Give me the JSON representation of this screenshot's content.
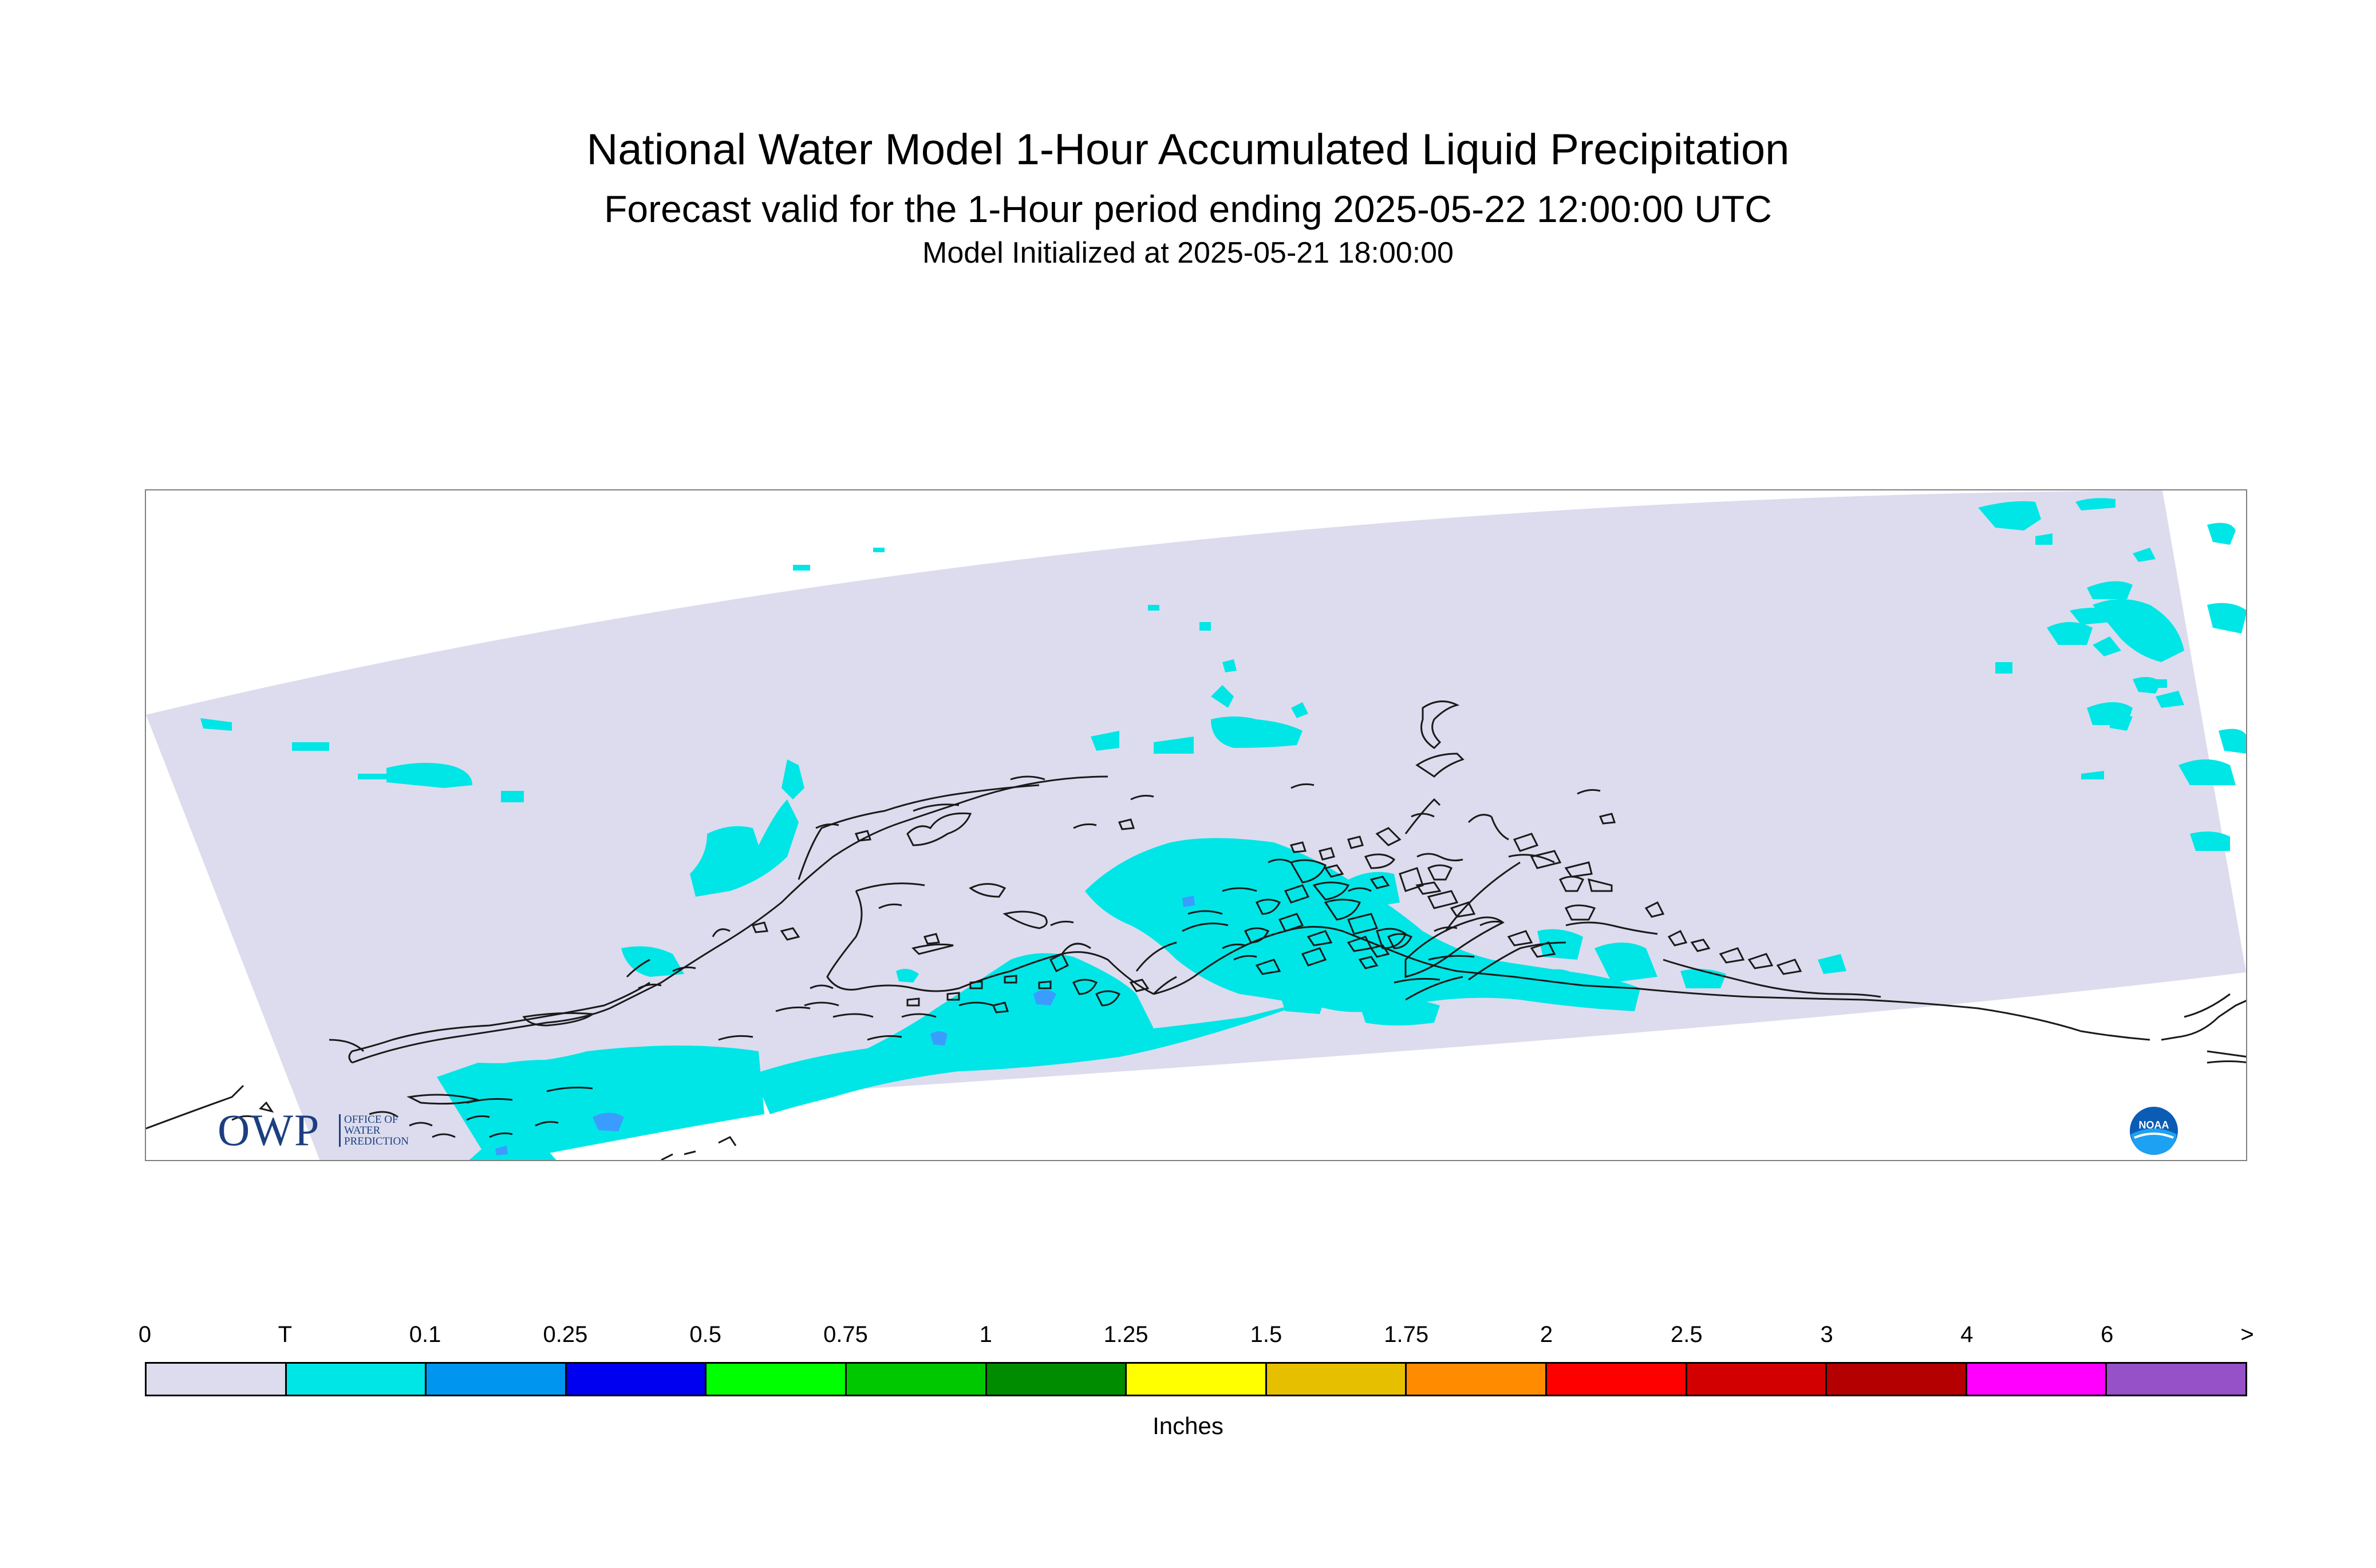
{
  "header": {
    "title": "National Water Model 1-Hour Accumulated Liquid Precipitation",
    "subtitle": "Forecast valid for the 1-Hour period ending 2025-05-22 12:00:00 UTC",
    "initialized": "Model Initialized at 2025-05-21 18:00:00"
  },
  "logos": {
    "owp_letters": "OWP",
    "owp_line1": "OFFICE OF",
    "owp_line2": "WATER",
    "owp_line3": "PREDICTION",
    "noaa_text": "NOAA"
  },
  "colors": {
    "domain": "#dcdcee",
    "background": "#ffffff",
    "coastline": "#1a1a1a",
    "frame": "#808080"
  },
  "legend": {
    "unit": "Inches",
    "labels": [
      "0",
      "T",
      "0.1",
      "0.25",
      "0.5",
      "0.75",
      "1",
      "1.25",
      "1.5",
      "1.75",
      "2",
      "2.5",
      "3",
      "4",
      "6",
      ">"
    ],
    "colors": [
      "#dcdcee",
      "#00e6e6",
      "#0096f0",
      "#0000f0",
      "#00ff00",
      "#00c800",
      "#008c00",
      "#ffff00",
      "#e6c000",
      "#ff8c00",
      "#ff0000",
      "#d20000",
      "#b40000",
      "#ff00ff",
      "#9650c8"
    ]
  }
}
